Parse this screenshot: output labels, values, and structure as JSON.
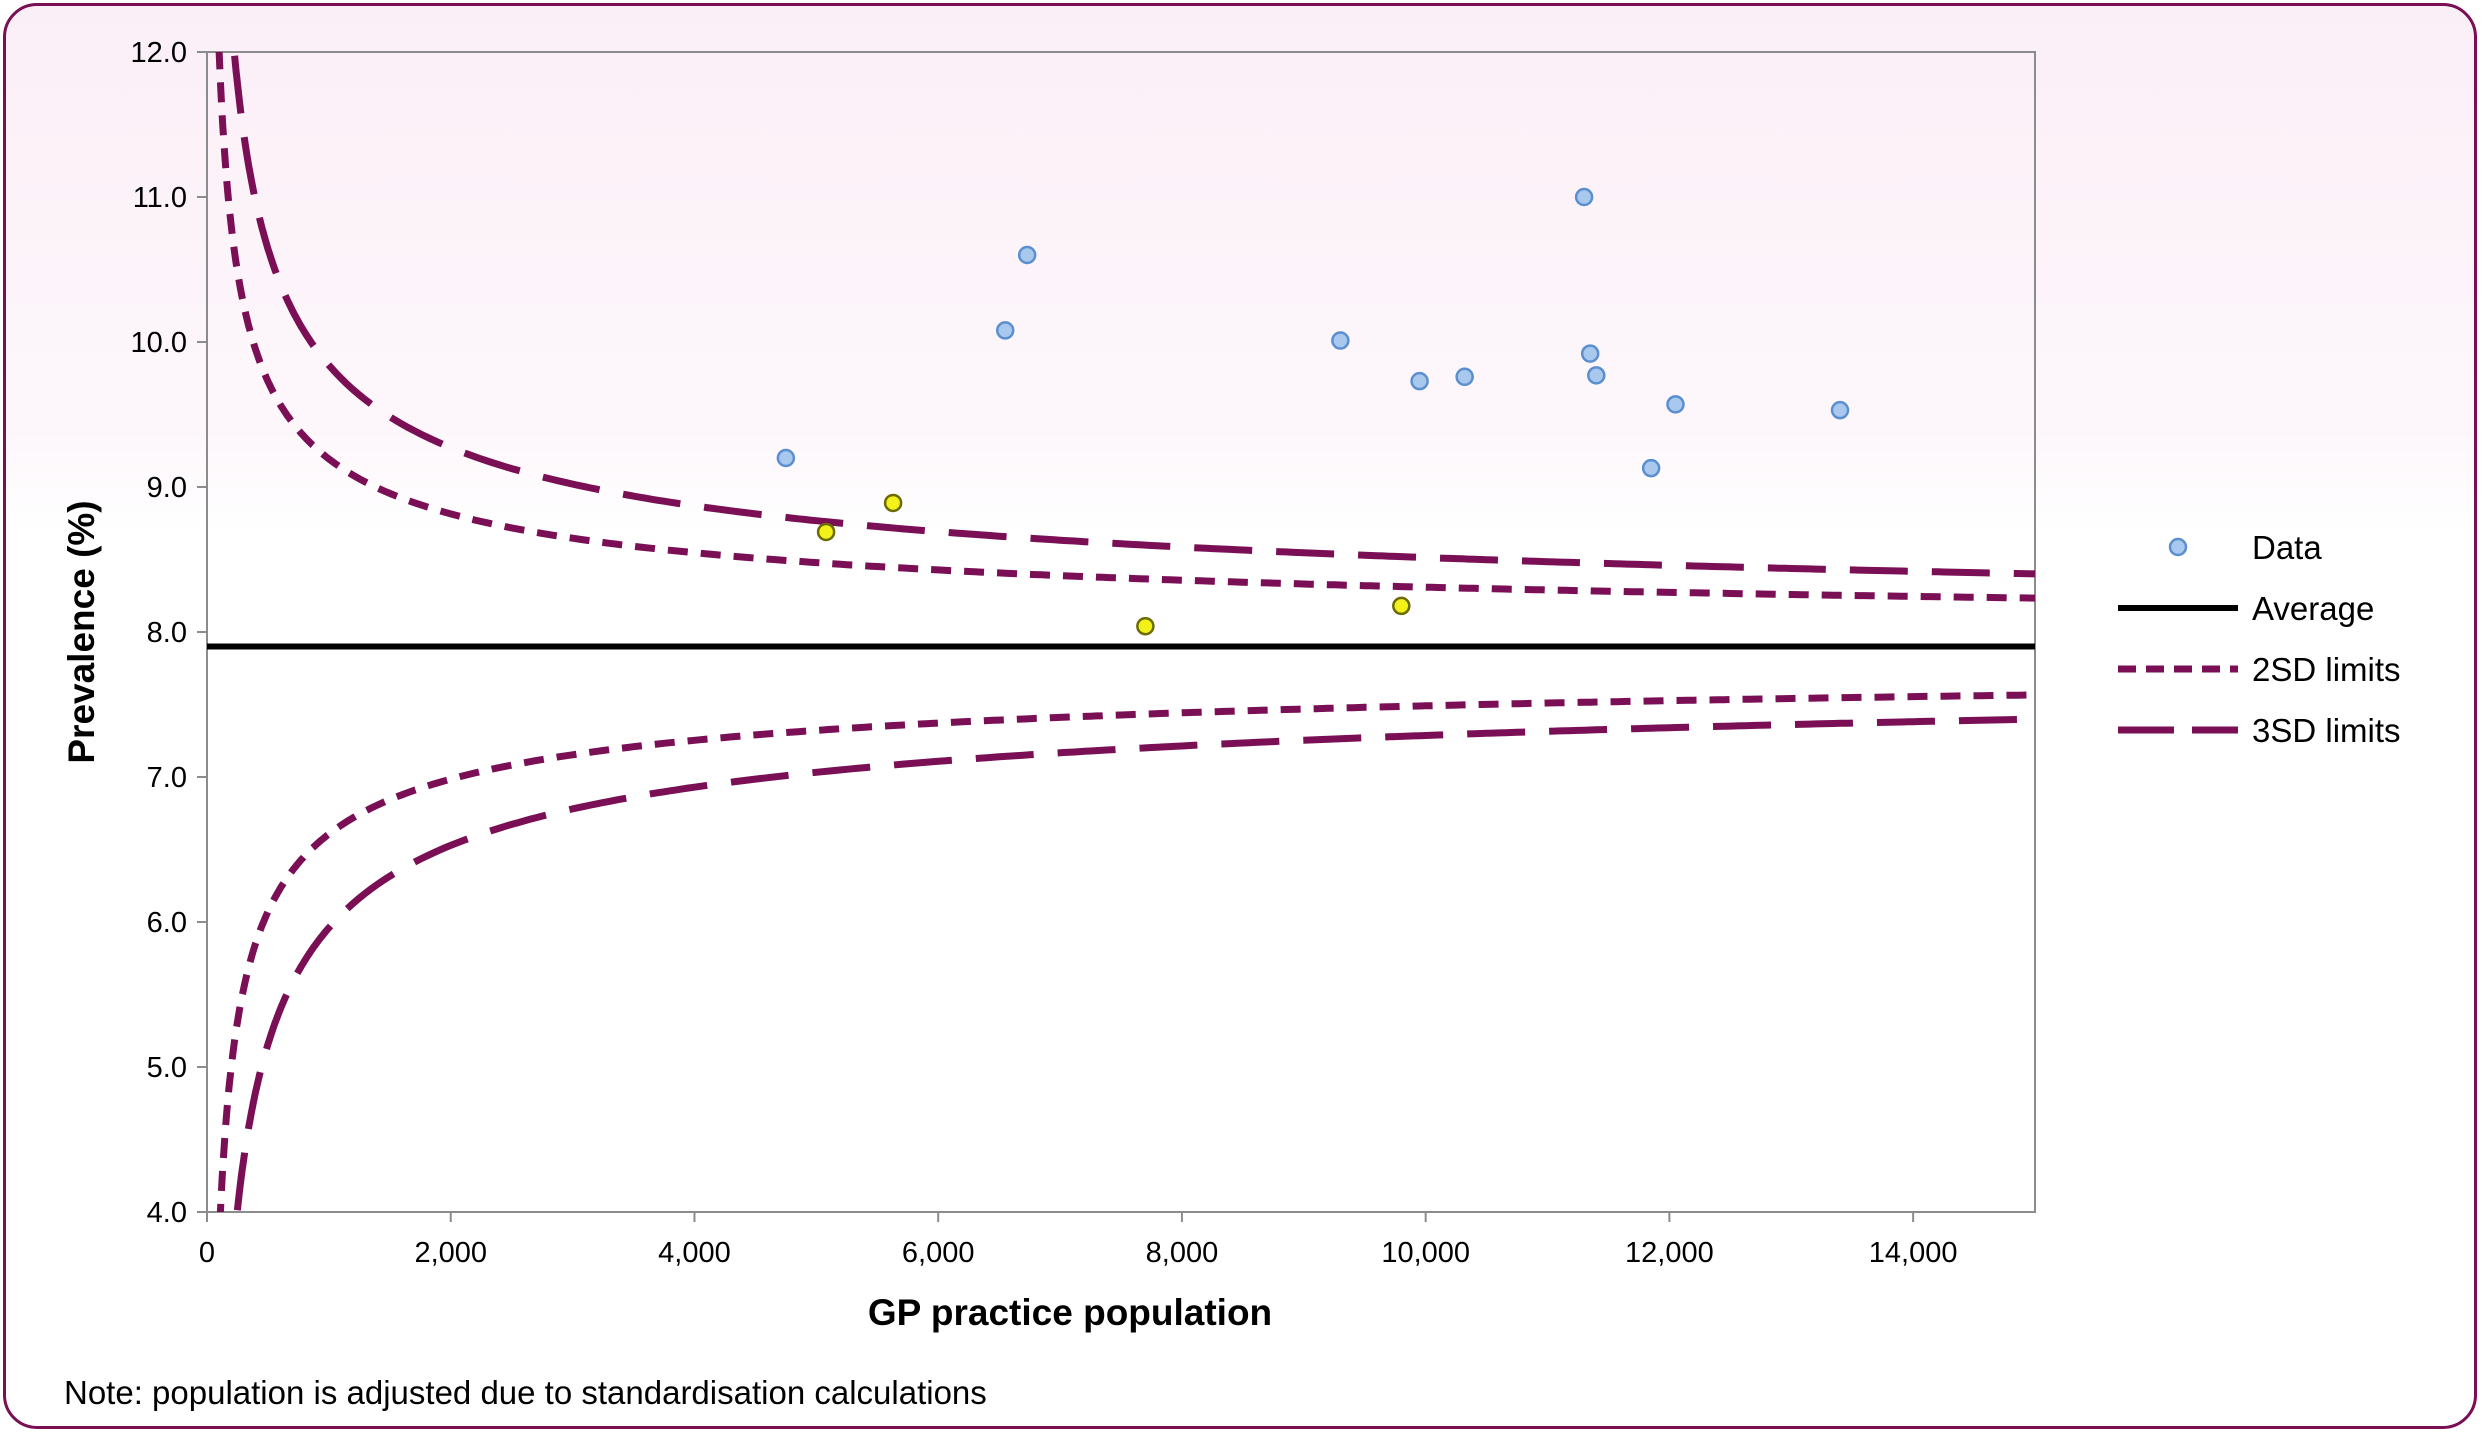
{
  "chart_data": {
    "type": "scatter",
    "xlabel": "GP practice population",
    "ylabel": "Prevalence (%)",
    "xlim": [
      0,
      15000
    ],
    "ylim": [
      4.0,
      12.0
    ],
    "x_ticks": [
      0,
      2000,
      4000,
      6000,
      8000,
      10000,
      12000,
      14000
    ],
    "x_tick_labels": [
      "0",
      "2,000",
      "4,000",
      "6,000",
      "8,000",
      "10,000",
      "12,000",
      "14,000"
    ],
    "y_ticks": [
      4,
      5,
      6,
      7,
      8,
      9,
      10,
      11,
      12
    ],
    "y_tick_labels": [
      "4.0",
      "5.0",
      "6.0",
      "7.0",
      "8.0",
      "9.0",
      "10.0",
      "11.0",
      "12.0"
    ],
    "average": 7.9,
    "limit_scale_k": 20.45,
    "series": [
      {
        "name": "Data",
        "color": "#a9c8ee",
        "points": [
          {
            "x": 4750,
            "y": 9.2
          },
          {
            "x": 6550,
            "y": 10.08
          },
          {
            "x": 6730,
            "y": 10.6
          },
          {
            "x": 9300,
            "y": 10.01
          },
          {
            "x": 9950,
            "y": 9.73
          },
          {
            "x": 10320,
            "y": 9.76
          },
          {
            "x": 11300,
            "y": 11.0
          },
          {
            "x": 11350,
            "y": 9.92
          },
          {
            "x": 11400,
            "y": 9.77
          },
          {
            "x": 11850,
            "y": 9.13
          },
          {
            "x": 12050,
            "y": 9.57
          },
          {
            "x": 13400,
            "y": 9.53
          }
        ]
      },
      {
        "name": "",
        "color": "#f2f21a",
        "points": [
          {
            "x": 5080,
            "y": 8.69
          },
          {
            "x": 5630,
            "y": 8.89
          },
          {
            "x": 7700,
            "y": 8.04
          },
          {
            "x": 9800,
            "y": 8.18
          }
        ]
      }
    ],
    "lines": [
      {
        "name": "Average",
        "color": "#000000",
        "style": "solid"
      },
      {
        "name": "2SD limits",
        "color": "#7a0f55",
        "style": "short-dash",
        "sd": 2
      },
      {
        "name": "3SD limits",
        "color": "#7a0f55",
        "style": "long-dash",
        "sd": 3
      }
    ],
    "legend_position": "right"
  },
  "note": "Note: population is adjusted due to standardisation calculations"
}
